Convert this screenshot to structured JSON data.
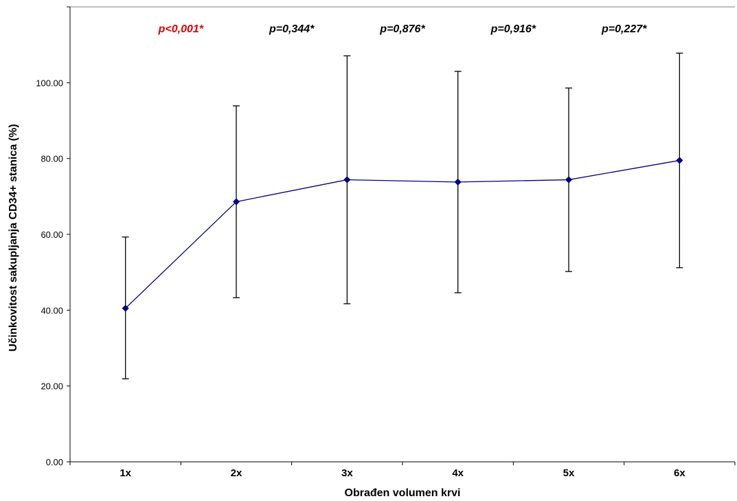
{
  "chart_data": {
    "type": "line",
    "title": "",
    "xlabel": "Obrađen volumen krvi",
    "ylabel": "Učinkovitost sakupljanja CD34+ stanica (%)",
    "ylim": [
      0,
      120
    ],
    "yticks": [
      0,
      20,
      40,
      60,
      80,
      100
    ],
    "ytick_labels": [
      "0.00",
      "20.00",
      "40.00",
      "60.00",
      "80.00",
      "100.00"
    ],
    "categories": [
      "1x",
      "2x",
      "3x",
      "4x",
      "5x",
      "6x"
    ],
    "series": [
      {
        "values": [
          40.5,
          68.6,
          74.4,
          73.8,
          74.4,
          79.5
        ],
        "error_low": [
          21.9,
          43.3,
          41.7,
          44.6,
          50.2,
          51.2
        ],
        "error_high": [
          59.3,
          93.9,
          107.1,
          103.0,
          98.6,
          107.8
        ],
        "color": "#000080"
      }
    ],
    "annotations": [
      {
        "text": "p<0,001*",
        "category": "1x",
        "color": "#e00000"
      },
      {
        "text": "p=0,344*",
        "category": "2x",
        "color": "#000000"
      },
      {
        "text": "p=0,876*",
        "category": "3x",
        "color": "#000000"
      },
      {
        "text": "p=0,916*",
        "category": "4x",
        "color": "#000000"
      },
      {
        "text": "p=0,227*",
        "category": "5x",
        "color": "#000000"
      }
    ],
    "grid": false,
    "legend": "none"
  }
}
